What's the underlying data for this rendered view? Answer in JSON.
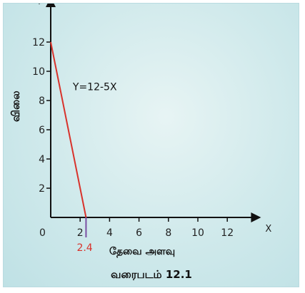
{
  "chart_data": {
    "type": "line",
    "title": "",
    "caption": "வரைபடம் 12.1",
    "xlabel": "தேவை அளவு",
    "ylabel": "விலை",
    "x_axis_name": "X",
    "y_axis_name": "Y",
    "origin_label": "0",
    "xlim": [
      0,
      14
    ],
    "ylim": [
      0,
      14
    ],
    "x_ticks": [
      2,
      4,
      6,
      8,
      10,
      12
    ],
    "y_ticks": [
      2,
      4,
      6,
      8,
      10,
      12
    ],
    "grid": false,
    "series": [
      {
        "name": "Y=12-5X",
        "color": "#d8322b",
        "x": [
          0,
          2.4
        ],
        "y": [
          12,
          0
        ]
      }
    ],
    "annotations": [
      {
        "text": "2.4",
        "x": 2.4,
        "color": "#d8322b",
        "marker_color": "#7b4fa2"
      }
    ],
    "axis_color": "#111111"
  }
}
